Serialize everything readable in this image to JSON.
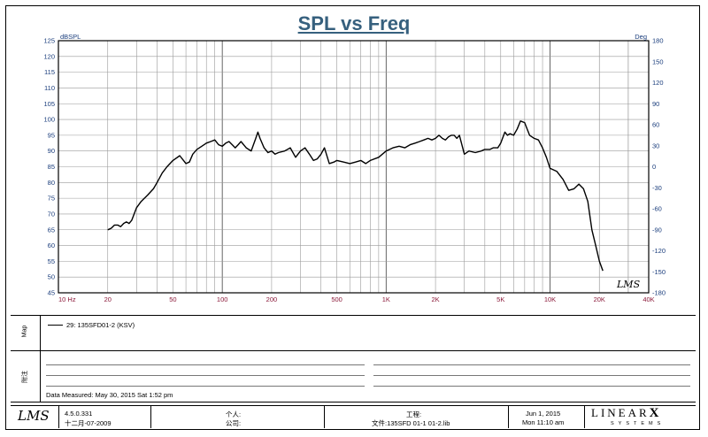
{
  "chart_data": {
    "type": "line",
    "title": "SPL vs Freq",
    "ylabel_left": "dBSPL",
    "ylabel_right": "Deg",
    "x_scale": "log",
    "xlim": [
      10,
      40000
    ],
    "ylim": [
      45,
      125
    ],
    "y2lim": [
      -180,
      180
    ],
    "x_tick_labels": [
      "10 Hz",
      "20",
      "50",
      "100",
      "200",
      "500",
      "1K",
      "2K",
      "5K",
      "10K",
      "20K",
      "40K"
    ],
    "x_tick_values": [
      10,
      20,
      50,
      100,
      200,
      500,
      1000,
      2000,
      5000,
      10000,
      20000,
      40000
    ],
    "y_ticks": [
      45,
      50,
      55,
      60,
      65,
      70,
      75,
      80,
      85,
      90,
      95,
      100,
      105,
      110,
      115,
      120,
      125
    ],
    "y2_ticks": [
      -180,
      -150,
      -120,
      -90,
      -60,
      -30,
      0,
      30,
      60,
      90,
      120,
      150,
      180
    ],
    "grid": true,
    "series": [
      {
        "name": "29: 135SFD01-2 (KSV)",
        "color": "#000000",
        "x": [
          20,
          21,
          22,
          23,
          24,
          25,
          26,
          27,
          28,
          30,
          32,
          35,
          38,
          40,
          43,
          46,
          50,
          55,
          58,
          60,
          63,
          66,
          70,
          75,
          80,
          85,
          90,
          95,
          100,
          105,
          110,
          115,
          120,
          125,
          130,
          140,
          150,
          160,
          165,
          170,
          180,
          190,
          200,
          210,
          220,
          240,
          260,
          280,
          300,
          320,
          340,
          360,
          380,
          400,
          420,
          450,
          480,
          500,
          550,
          600,
          650,
          700,
          750,
          800,
          900,
          1000,
          1100,
          1200,
          1300,
          1400,
          1500,
          1600,
          1700,
          1800,
          1900,
          2000,
          2100,
          2200,
          2300,
          2400,
          2500,
          2600,
          2700,
          2800,
          3000,
          3200,
          3500,
          3800,
          4000,
          4300,
          4500,
          4800,
          5000,
          5300,
          5500,
          5700,
          6000,
          6300,
          6600,
          7000,
          7500,
          8000,
          8500,
          9000,
          9500,
          10000,
          11000,
          12000,
          13000,
          14000,
          15000,
          16000,
          17000,
          18000,
          19000,
          20000,
          21000
        ],
        "values": [
          65,
          65.5,
          66.5,
          66.5,
          66,
          67,
          67.5,
          67,
          68,
          72,
          74,
          76,
          78,
          80,
          83,
          85,
          87,
          88.5,
          87,
          86,
          86.5,
          89,
          90.5,
          91.5,
          92.5,
          93,
          93.5,
          92,
          91.5,
          92.5,
          93,
          92,
          91,
          92,
          93,
          91,
          90,
          94,
          96,
          94,
          91,
          89.5,
          90,
          89,
          89.5,
          90,
          91,
          88,
          90,
          91,
          89,
          87,
          87.5,
          89,
          91,
          86,
          86.5,
          87,
          86.5,
          86,
          86.5,
          87,
          86,
          87,
          88,
          90,
          91,
          91.5,
          91,
          92,
          92.5,
          93,
          93.5,
          94,
          93.5,
          94,
          95,
          94,
          93.5,
          94.5,
          95,
          95,
          94,
          95,
          89,
          90,
          89.5,
          90,
          90.5,
          90.5,
          91,
          91,
          92.5,
          96,
          95,
          95.5,
          95,
          97,
          99.5,
          99,
          95,
          94,
          93.5,
          91,
          88,
          84.5,
          83.5,
          81,
          77.5,
          78,
          79.5,
          78,
          74,
          65,
          60,
          55,
          52
        ]
      }
    ],
    "annotations": [
      "LMS"
    ]
  },
  "legend": {
    "side_label": "Map",
    "entry": "29: 135SFD01-2 (KSV)"
  },
  "notes": {
    "side_label": "附注",
    "date_measured": "Data Measured: May 30, 2015  Sat  1:52 pm"
  },
  "footer": {
    "lms_logo": "LMS",
    "version": "4.5.0.331",
    "build_date": "十二月-07-2009",
    "person_label": "个人:",
    "company_label": "公司:",
    "project_label": "工程:",
    "file_label": "文件:135SFD 01-1  01-2.lib",
    "date": "Jun  1, 2015",
    "time": "Mon 11:10 am",
    "brand": "LINEAR",
    "brand_x": "X",
    "brand_sub": "SYSTEMS"
  }
}
